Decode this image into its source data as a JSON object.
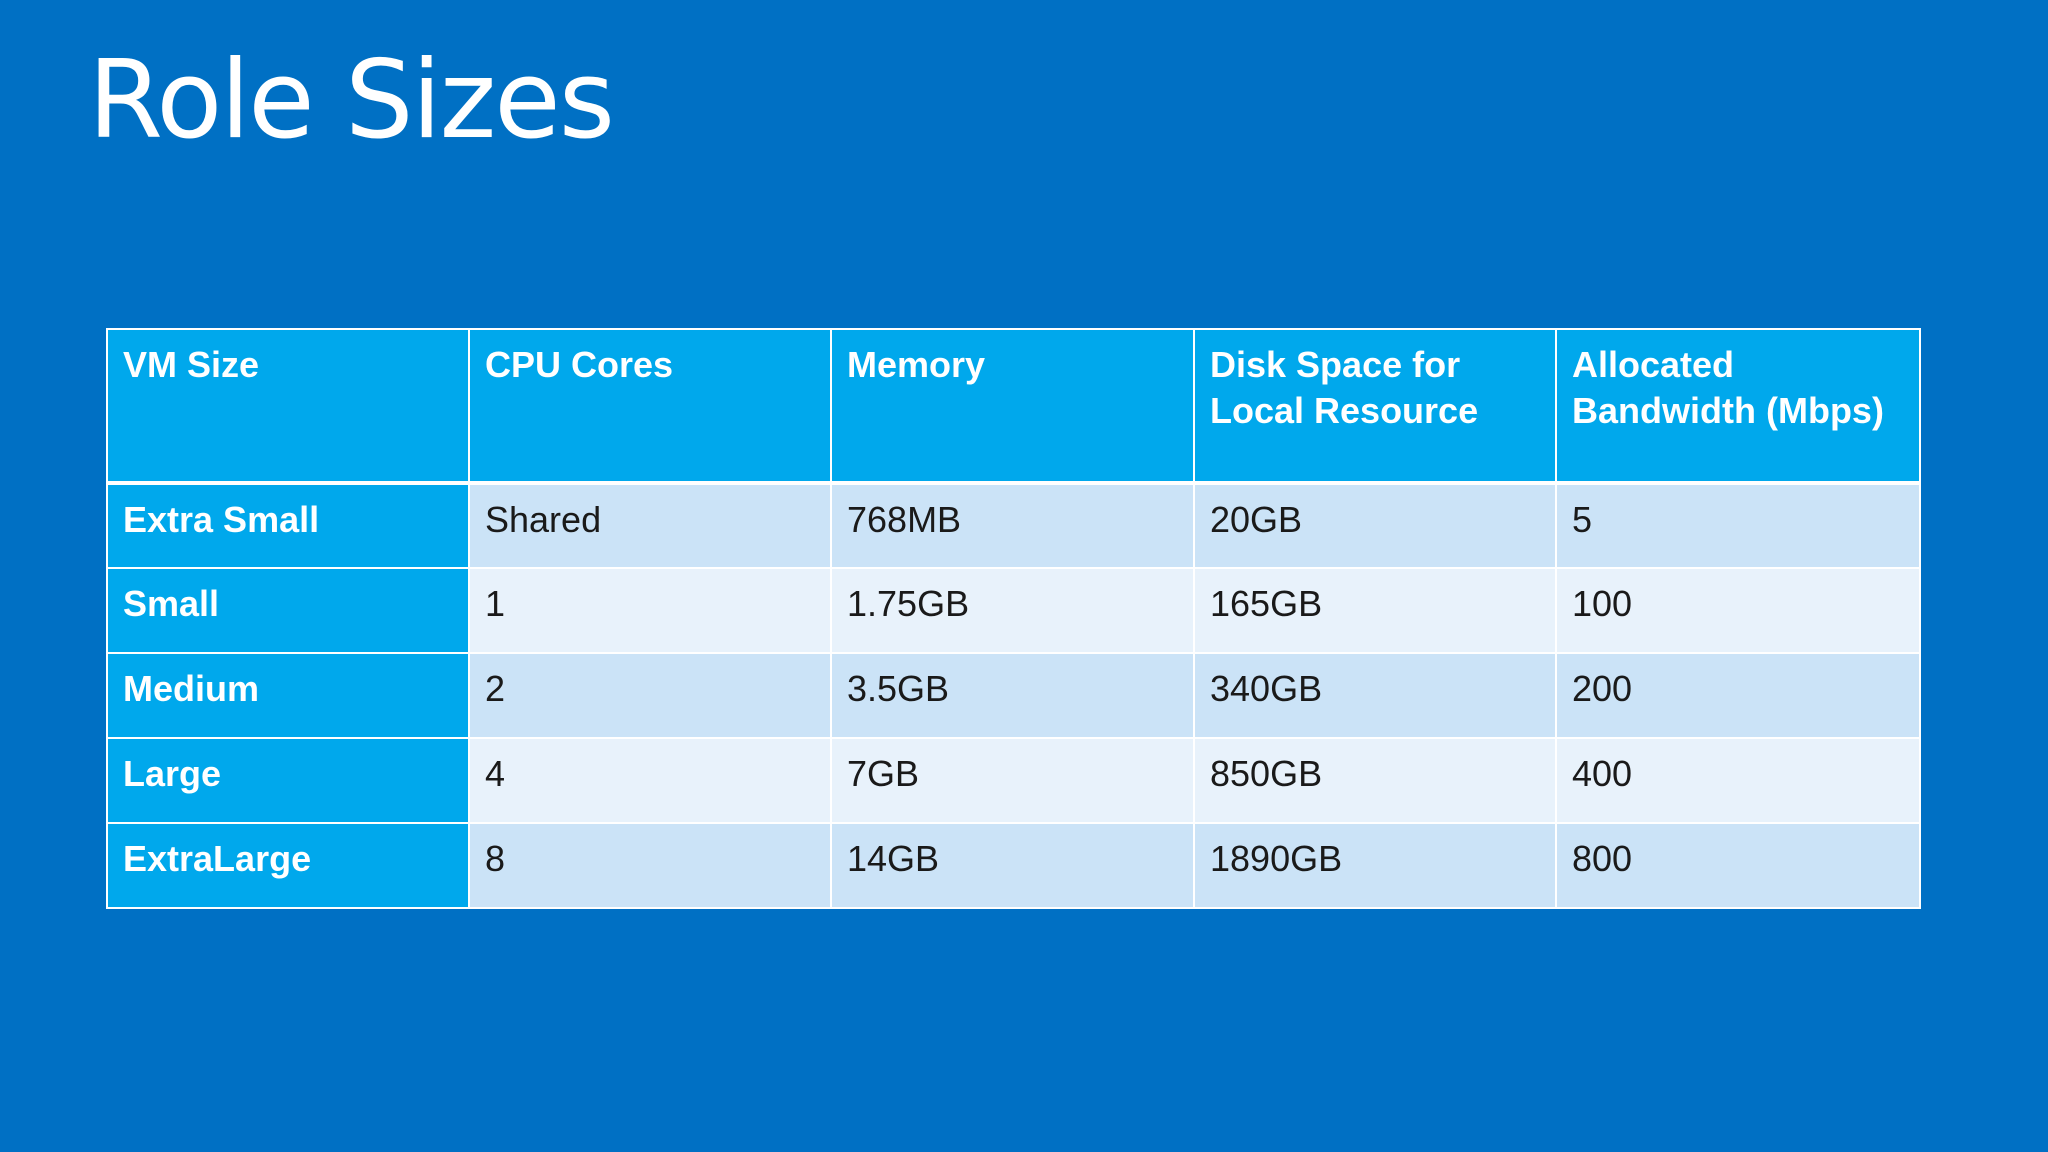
{
  "title": "Role Sizes",
  "table": {
    "headers": [
      "VM Size",
      "CPU Cores",
      "Memory",
      "Disk Space for Local Resource",
      "Allocated Bandwidth (Mbps)"
    ],
    "rows": [
      [
        "Extra Small",
        "Shared",
        "768MB",
        "20GB",
        "5"
      ],
      [
        "Small",
        "1",
        "1.75GB",
        "165GB",
        "100"
      ],
      [
        "Medium",
        "2",
        "3.5GB",
        "340GB",
        "200"
      ],
      [
        "Large",
        "4",
        "7GB",
        "850GB",
        "400"
      ],
      [
        "ExtraLarge",
        "8",
        "14GB",
        "1890GB",
        "800"
      ]
    ]
  },
  "colors": {
    "background": "#0070c4",
    "header_fill": "#00a8ec",
    "row_dark": "#cbe3f7",
    "row_light": "#e8f2fb",
    "text_light": "#ffffff",
    "text_dark": "#1a1a1a"
  }
}
